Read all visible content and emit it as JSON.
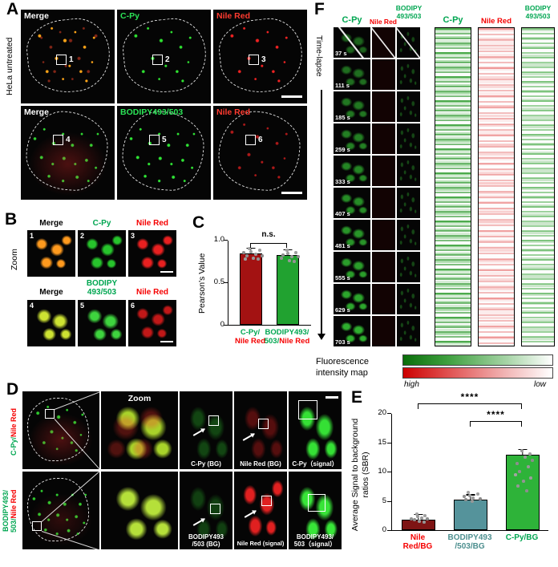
{
  "chart_data": [
    {
      "id": "pearsons_value",
      "type": "bar",
      "ylabel": "Pearson's Value",
      "categories": [
        "C-Py/Nile Red",
        "BODIPY493/503/Nile Red"
      ],
      "values": [
        0.85,
        0.83
      ],
      "bar_colors": [
        "#a31212",
        "#21a230"
      ],
      "ylim": [
        0,
        1.0
      ],
      "yticks": [
        "0",
        "0.5",
        "1.0"
      ],
      "grid": false,
      "significance": [
        {
          "between": [
            "C-Py/Nile Red",
            "BODIPY493/503/Nile Red"
          ],
          "label": "n.s."
        }
      ],
      "points": {
        "C-Py/Nile Red": [
          0.78,
          0.8,
          0.82,
          0.83,
          0.84,
          0.85,
          0.86,
          0.87,
          0.88,
          0.9
        ],
        "BODIPY493/503/Nile Red": [
          0.76,
          0.79,
          0.81,
          0.82,
          0.83,
          0.84,
          0.85,
          0.86,
          0.87,
          0.89
        ]
      }
    },
    {
      "id": "signal_to_background",
      "type": "bar",
      "ylabel": "Average Signal to background ratios (SBR)",
      "categories": [
        "Nile Red/BG",
        "BODIPY493/503/BG",
        "C-Py/BG"
      ],
      "values": [
        1.8,
        5.2,
        13.0
      ],
      "bar_colors": [
        "#7e1414",
        "#55939b",
        "#2eb339"
      ],
      "ylim": [
        0,
        20
      ],
      "yticks": [
        "0",
        "5",
        "10",
        "15",
        "20"
      ],
      "grid": false,
      "significance": [
        {
          "between": [
            "Nile Red/BG",
            "C-Py/BG"
          ],
          "label": "****"
        },
        {
          "between": [
            "BODIPY493/503/BG",
            "C-Py/BG"
          ],
          "label": "****"
        }
      ],
      "points": {
        "Nile Red/BG": [
          1.2,
          1.4,
          1.5,
          1.6,
          1.8,
          1.9,
          2.0,
          2.2
        ],
        "BODIPY493/503/BG": [
          4.4,
          4.7,
          4.9,
          5.0,
          5.2,
          5.4,
          5.6,
          5.9
        ],
        "C-Py/BG": [
          10.3,
          11.0,
          11.6,
          12.1,
          12.6,
          13.0,
          13.5,
          14.0,
          14.6,
          15.3
        ]
      }
    }
  ],
  "panelA": {
    "tag": "A",
    "side_label": "HeLa untreated",
    "titles": [
      "Merge",
      "C-Py",
      "Nile Red",
      "Merge",
      "BODIPY493/503",
      "Nile Red"
    ],
    "rois": [
      "1",
      "2",
      "3",
      "4",
      "5",
      "6"
    ]
  },
  "panelB": {
    "tag": "B",
    "side_label": "Zoom",
    "headers_row1": [
      "Merge",
      "C-Py",
      "Nile Red"
    ],
    "headers_row2": [
      "Merge",
      "BODIPY",
      "Nile Red"
    ],
    "header_bodipy_line2": "493/503",
    "numbers": [
      "1",
      "2",
      "3",
      "4",
      "5",
      "6"
    ]
  },
  "panelC": {
    "tag": "C",
    "x1_line1": "C-Py/",
    "x1_line2": "Nile Red",
    "x2_line1": "BODIPY493/",
    "x2_line2_green": "503/",
    "x2_line2_red": "Nile Red"
  },
  "panelD": {
    "tag": "D",
    "row1_green": "C-Py/",
    "row1_red": "Nile Red",
    "row2_green1": "BODIPY493/",
    "row2_green2": "503/",
    "row2_red": "Nile Red",
    "zoom": "Zoom",
    "r1_bg_green": "C-Py (BG)",
    "r1_bg_red": "Nile Red (BG)",
    "r1_signal": "C-Py（signal）",
    "r2_bg1": "BODIPY493",
    "r2_bg2": "/503 (BG)",
    "r2_signal_red": "Nile Red (signal)",
    "r2_signal1": "BODIPY493/",
    "r2_signal2": "503（signal）"
  },
  "panelE": {
    "tag": "E",
    "ylabel_line1": "Average Signal to background",
    "ylabel_line2": "ratios (SBR)",
    "x1_line1": "Nile",
    "x1_line2": "Red/BG",
    "x2_line1": "BODIPY493",
    "x2_line2": "/503/BG",
    "x3": "C-Py/BG"
  },
  "panelF": {
    "tag": "F",
    "side_label": "Time-lapse",
    "col_cpy": "C-Py",
    "col_nile": "Nile Red",
    "col_bodipy_1": "BODIPY",
    "col_bodipy_2": "493/503",
    "times": [
      "37 s",
      "111 s",
      "185 s",
      "259 s",
      "333 s",
      "407 s",
      "481 s",
      "555 s",
      "629 s",
      "703 s"
    ],
    "legend_line1": "Fluorescence",
    "legend_line2": "intensity map",
    "high": "high",
    "low": "low"
  },
  "colors": {
    "channel_green": "#00a651",
    "channel_red": "#f50000",
    "signal_yellow": "#ffe93a",
    "teal_label": "#4d8f8f"
  }
}
